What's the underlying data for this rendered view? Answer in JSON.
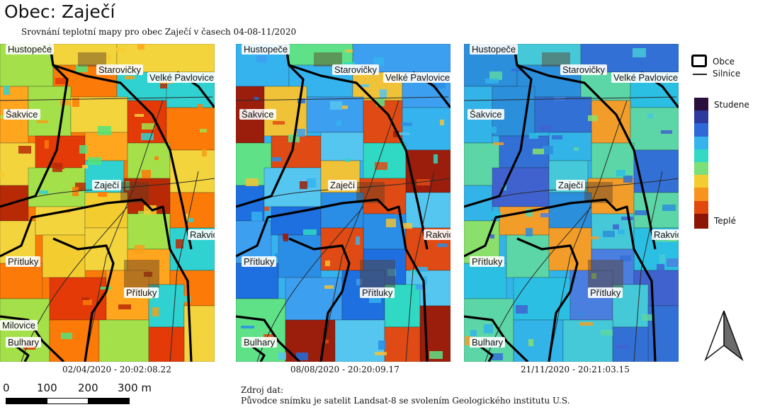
{
  "header": {
    "title": "Obec: Zaječí",
    "subtitle": "Srovnání teplotní mapy pro obec Zaječí v časech 04-08-11/2020"
  },
  "panels": [
    {
      "date": "02/04/2020 - 20:02:08.22",
      "palette": [
        "#fb7a08",
        "#f6a018",
        "#f3cd30",
        "#a4e04a",
        "#53e37a",
        "#2fd2d0",
        "#f4d43c",
        "#e33a08",
        "#b82a06",
        "#ffa51e"
      ],
      "labels": {
        "hustopece": "Hustopeče",
        "starovicky": "Starovičky",
        "velke_pavlovice": "Velké Pavlovice",
        "sakvice": "Šakvice",
        "zajeci": "Zaječí",
        "rakvice": "Rakvice",
        "pritluky_west": "Přítluky",
        "pritluky_village": "Přítluky",
        "milovice": "Milovice",
        "bulhary": "Bulhary"
      }
    },
    {
      "date": "08/08/2020 - 20:20:09.17",
      "palette": [
        "#35b3ef",
        "#55c6f0",
        "#2a8ee6",
        "#5fe287",
        "#f0c238",
        "#2fd9c3",
        "#3c9ff0",
        "#e04a14",
        "#9b1d0c",
        "#1e6fe0"
      ],
      "labels": {
        "hustopece": "Hustopeče",
        "starovicky": "Starovičky",
        "velke_pavlovice": "Velké Pavlovice",
        "sakvice": "Šakvice",
        "zajeci": "Zaječí",
        "rakvice": "Rakvice",
        "pritluky_west": "Přítluky",
        "pritluky_village": "Přítluky",
        "bulhary": "Bulhary"
      }
    },
    {
      "date": "21/11/2020 - 20:21:03.15",
      "palette": [
        "#33b4e8",
        "#2b8fdc",
        "#3f62cf",
        "#5cd6a6",
        "#45c9d8",
        "#8ae06b",
        "#3370d6",
        "#f29d2a",
        "#2bc0e3",
        "#4a7fe0"
      ],
      "labels": {
        "hustopece": "Hustopeče",
        "starovicky": "Starovičky",
        "velke_pavlovice": "Velké Pavlovice",
        "sakvice": "Šakvice",
        "zajeci": "Zaječí",
        "rakvice": "Rakvice",
        "pritluky_west": "Přítluky",
        "pritluky_village": "Přítluky",
        "bulhary": "Bulhary"
      }
    }
  ],
  "legend": {
    "obce": "Obce",
    "silnice": "Silnice",
    "studene": "Studene",
    "teple": "Teplé",
    "ramp": [
      "#2a0f3c",
      "#2e3a9c",
      "#2f68d8",
      "#35b4ec",
      "#34d9c6",
      "#7be07a",
      "#f3cd30",
      "#f7941d",
      "#e2480e",
      "#8c1506"
    ]
  },
  "scalebar": {
    "labels": [
      "0",
      "100",
      "200",
      "300 m"
    ]
  },
  "source": {
    "heading": "Zdroj dat:",
    "text": "Původce snímku je satelit Landsat-8 se svolením Geologického institutu U.S."
  }
}
